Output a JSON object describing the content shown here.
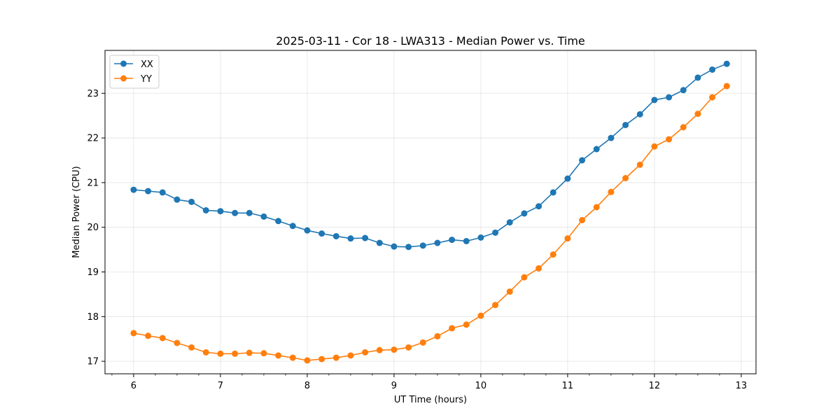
{
  "chart_data": {
    "type": "line",
    "title": "2025-03-11 - Cor 18 - LWA313 - Median Power vs. Time",
    "xlabel": "UT Time (hours)",
    "ylabel": "Median Power (CPU)",
    "xlim": [
      5.67,
      13.17
    ],
    "ylim": [
      16.72,
      23.96
    ],
    "xticks": [
      6,
      7,
      8,
      9,
      10,
      11,
      12,
      13
    ],
    "yticks": [
      17,
      18,
      19,
      20,
      21,
      22,
      23
    ],
    "grid": true,
    "legend_position": "top-left",
    "x": [
      6.0,
      6.1667,
      6.3333,
      6.5,
      6.6667,
      6.8333,
      7.0,
      7.1667,
      7.3333,
      7.5,
      7.6667,
      7.8333,
      8.0,
      8.1667,
      8.3333,
      8.5,
      8.6667,
      8.8333,
      9.0,
      9.1667,
      9.3333,
      9.5,
      9.6667,
      9.8333,
      10.0,
      10.1667,
      10.3333,
      10.5,
      10.6667,
      10.8333,
      11.0,
      11.1667,
      11.3333,
      11.5,
      11.6667,
      11.8333,
      12.0,
      12.1667,
      12.3333,
      12.5,
      12.6667,
      12.8333
    ],
    "series": [
      {
        "name": "XX",
        "color": "#1f77b4",
        "values": [
          20.84,
          20.81,
          20.78,
          20.62,
          20.57,
          20.38,
          20.36,
          20.32,
          20.32,
          20.24,
          20.14,
          20.03,
          19.93,
          19.86,
          19.8,
          19.75,
          19.76,
          19.65,
          19.57,
          19.56,
          19.59,
          19.65,
          19.72,
          19.69,
          19.77,
          19.88,
          20.11,
          20.31,
          20.47,
          20.78,
          21.09,
          21.5,
          21.75,
          22.0,
          22.29,
          22.53,
          22.85,
          22.91,
          23.07,
          23.35,
          23.53,
          23.66
        ]
      },
      {
        "name": "YY",
        "color": "#ff7f0e",
        "values": [
          17.63,
          17.57,
          17.52,
          17.41,
          17.31,
          17.2,
          17.17,
          17.17,
          17.19,
          17.18,
          17.13,
          17.08,
          17.02,
          17.05,
          17.08,
          17.13,
          17.2,
          17.25,
          17.26,
          17.31,
          17.42,
          17.56,
          17.74,
          17.82,
          18.02,
          18.26,
          18.56,
          18.88,
          19.08,
          19.39,
          19.75,
          20.16,
          20.45,
          20.79,
          21.1,
          21.4,
          21.81,
          21.97,
          22.24,
          22.54,
          22.91,
          23.16
        ]
      }
    ]
  }
}
